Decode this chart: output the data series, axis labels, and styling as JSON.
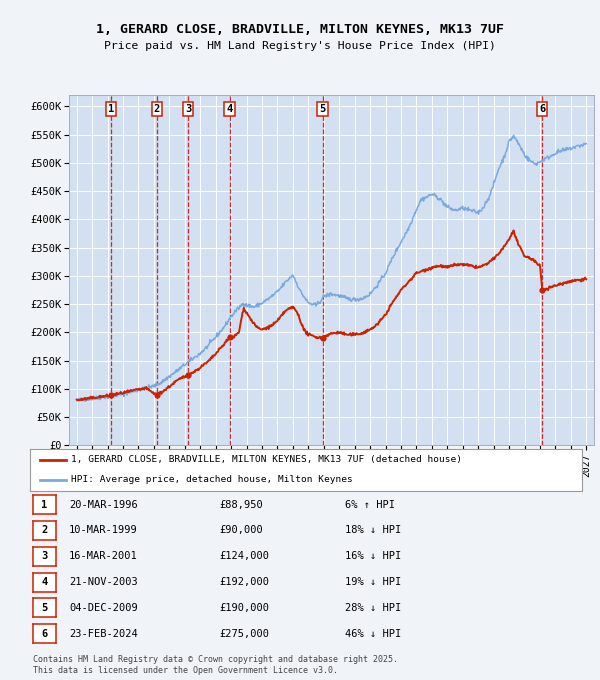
{
  "title_line1": "1, GERARD CLOSE, BRADVILLE, MILTON KEYNES, MK13 7UF",
  "title_line2": "Price paid vs. HM Land Registry's House Price Index (HPI)",
  "ylim": [
    0,
    620000
  ],
  "yticks": [
    0,
    50000,
    100000,
    150000,
    200000,
    250000,
    300000,
    350000,
    400000,
    450000,
    500000,
    550000,
    600000
  ],
  "ytick_labels": [
    "£0",
    "£50K",
    "£100K",
    "£150K",
    "£200K",
    "£250K",
    "£300K",
    "£350K",
    "£400K",
    "£450K",
    "£500K",
    "£550K",
    "£600K"
  ],
  "xlim_start": 1993.5,
  "xlim_end": 2027.5,
  "xticks": [
    1994,
    1995,
    1996,
    1997,
    1998,
    1999,
    2000,
    2001,
    2002,
    2003,
    2004,
    2005,
    2006,
    2007,
    2008,
    2009,
    2010,
    2011,
    2012,
    2013,
    2014,
    2015,
    2016,
    2017,
    2018,
    2019,
    2020,
    2021,
    2022,
    2023,
    2024,
    2025,
    2026,
    2027
  ],
  "fig_bg_color": "#f0f4f8",
  "plot_bg_color": "#dde8f5",
  "grid_color": "#ffffff",
  "hpi_color": "#7aaadd",
  "price_color": "#cc2200",
  "vline_color": "#cc0000",
  "sale_dates_x": [
    1996.22,
    1999.19,
    2001.21,
    2003.9,
    2009.92,
    2024.15
  ],
  "sale_prices_y": [
    88950,
    90000,
    124000,
    192000,
    190000,
    275000
  ],
  "sale_labels": [
    "1",
    "2",
    "3",
    "4",
    "5",
    "6"
  ],
  "hpi_anchors_x": [
    1994.0,
    1995.0,
    1996.0,
    1997.0,
    1998.0,
    1999.0,
    1999.5,
    2000.0,
    2000.5,
    2001.0,
    2001.5,
    2002.0,
    2002.5,
    2003.0,
    2003.5,
    2004.0,
    2004.3,
    2004.8,
    2005.0,
    2005.5,
    2006.0,
    2006.5,
    2007.0,
    2007.5,
    2008.0,
    2008.5,
    2009.0,
    2009.5,
    2009.8,
    2010.0,
    2010.5,
    2011.0,
    2011.5,
    2012.0,
    2012.5,
    2013.0,
    2013.5,
    2014.0,
    2014.5,
    2015.0,
    2015.5,
    2016.0,
    2016.3,
    2016.7,
    2017.0,
    2017.5,
    2018.0,
    2018.5,
    2019.0,
    2019.5,
    2020.0,
    2020.3,
    2020.8,
    2021.0,
    2021.3,
    2021.7,
    2022.0,
    2022.3,
    2022.7,
    2023.0,
    2023.3,
    2023.7,
    2024.0,
    2024.3,
    2024.7,
    2025.0,
    2025.5,
    2026.0,
    2026.5,
    2027.0
  ],
  "hpi_anchors_y": [
    80000,
    83000,
    86000,
    91000,
    98000,
    105000,
    112000,
    122000,
    132000,
    143000,
    153000,
    163000,
    176000,
    192000,
    208000,
    228000,
    238000,
    252000,
    248000,
    245000,
    252000,
    261000,
    272000,
    288000,
    302000,
    272000,
    252000,
    248000,
    256000,
    264000,
    268000,
    265000,
    260000,
    258000,
    260000,
    268000,
    285000,
    305000,
    335000,
    360000,
    385000,
    418000,
    435000,
    440000,
    445000,
    437000,
    422000,
    416000,
    420000,
    416000,
    412000,
    420000,
    445000,
    462000,
    488000,
    512000,
    538000,
    548000,
    530000,
    515000,
    505000,
    498000,
    502000,
    507000,
    512000,
    518000,
    522000,
    526000,
    530000,
    534000
  ],
  "price_anchors_x": [
    1994.0,
    1995.0,
    1995.5,
    1996.0,
    1996.22,
    1997.0,
    1998.0,
    1998.5,
    1999.0,
    1999.19,
    1999.5,
    2000.0,
    2000.5,
    2001.0,
    2001.21,
    2001.7,
    2002.0,
    2002.5,
    2003.0,
    2003.5,
    2003.9,
    2004.0,
    2004.5,
    2004.8,
    2005.0,
    2005.3,
    2005.7,
    2006.0,
    2006.5,
    2007.0,
    2007.5,
    2008.0,
    2008.3,
    2008.7,
    2009.0,
    2009.5,
    2009.92,
    2010.0,
    2010.5,
    2011.0,
    2011.5,
    2012.0,
    2012.5,
    2013.0,
    2013.5,
    2014.0,
    2014.5,
    2015.0,
    2015.5,
    2016.0,
    2016.5,
    2017.0,
    2017.5,
    2018.0,
    2018.5,
    2019.0,
    2019.5,
    2020.0,
    2020.5,
    2021.0,
    2021.5,
    2022.0,
    2022.3,
    2022.6,
    2023.0,
    2023.5,
    2023.8,
    2024.0,
    2024.15,
    2024.5,
    2025.0,
    2025.5,
    2026.0,
    2026.5,
    2027.0
  ],
  "price_anchors_y": [
    80000,
    84000,
    86000,
    87500,
    88950,
    93000,
    99000,
    101000,
    92000,
    90000,
    94000,
    104000,
    115000,
    122000,
    124000,
    132000,
    138000,
    148000,
    162000,
    178000,
    192000,
    188000,
    200000,
    243000,
    235000,
    222000,
    208000,
    205000,
    210000,
    220000,
    238000,
    245000,
    235000,
    205000,
    196000,
    192000,
    190000,
    193000,
    198000,
    200000,
    196000,
    196000,
    199000,
    205000,
    215000,
    232000,
    255000,
    275000,
    290000,
    305000,
    310000,
    315000,
    318000,
    315000,
    320000,
    320000,
    318000,
    315000,
    320000,
    330000,
    345000,
    365000,
    380000,
    355000,
    335000,
    330000,
    322000,
    318000,
    275000,
    278000,
    283000,
    287000,
    291000,
    293000,
    295000
  ],
  "transactions": [
    {
      "label": "1",
      "date": "20-MAR-1996",
      "price": "£88,950",
      "hpi": "6% ↑ HPI"
    },
    {
      "label": "2",
      "date": "10-MAR-1999",
      "price": "£90,000",
      "hpi": "18% ↓ HPI"
    },
    {
      "label": "3",
      "date": "16-MAR-2001",
      "price": "£124,000",
      "hpi": "16% ↓ HPI"
    },
    {
      "label": "4",
      "date": "21-NOV-2003",
      "price": "£192,000",
      "hpi": "19% ↓ HPI"
    },
    {
      "label": "5",
      "date": "04-DEC-2009",
      "price": "£190,000",
      "hpi": "28% ↓ HPI"
    },
    {
      "label": "6",
      "date": "23-FEB-2024",
      "price": "£275,000",
      "hpi": "46% ↓ HPI"
    }
  ],
  "legend_line1": "1, GERARD CLOSE, BRADVILLE, MILTON KEYNES, MK13 7UF (detached house)",
  "legend_line2": "HPI: Average price, detached house, Milton Keynes",
  "footnote": "Contains HM Land Registry data © Crown copyright and database right 2025.\nThis data is licensed under the Open Government Licence v3.0."
}
